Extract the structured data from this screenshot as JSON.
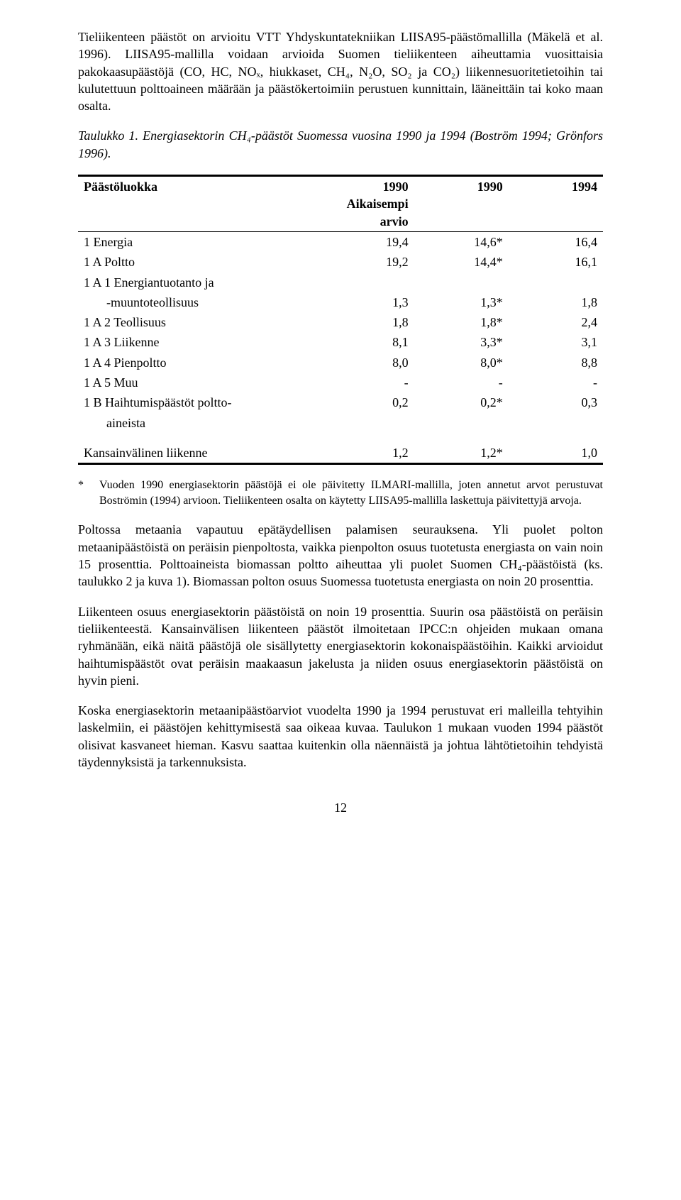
{
  "para1": "Tieliikenteen päästöt on arvioitu VTT Yhdyskuntatekniikan LIISA95-päästömallilla (Mäkelä et al. 1996). LIISA95-mallilla voidaan arvioida Suomen tieliikenteen aiheuttamia vuosittaisia pakokaasupäästöjä (CO, HC, NOₓ, hiukkaset, CH₄, N₂O, SO₂ ja CO₂) liikennesuoritetietoihin tai kulutettuun polttoaineen määrään ja päästökertoimiin perustuen kunnittain, lääneittäin tai koko maan osalta.",
  "tableCaption": "Taulukko 1. Energiasektorin CH₄-päästöt Suomessa vuosina 1990 ja 1994 (Boström 1994; Grönfors 1996).",
  "headers": {
    "c0": "Päästöluokka",
    "c1a": "1990",
    "c1b": "Aikaisempi",
    "c1c": "arvio",
    "c2": "1990",
    "c3": "1994"
  },
  "rows": [
    {
      "label": "1 Energia",
      "indent": false,
      "v1": "19,4",
      "v2": "14,6*",
      "v3": "16,4"
    },
    {
      "label": "1 A   Poltto",
      "indent": false,
      "v1": "19,2",
      "v2": "14,4*",
      "v3": "16,1"
    },
    {
      "label": "1 A 1 Energiantuotanto ja",
      "indent": false,
      "v1": "",
      "v2": "",
      "v3": ""
    },
    {
      "label": "-muuntoteollisuus",
      "indent": true,
      "v1": "1,3",
      "v2": "1,3*",
      "v3": "1,8"
    },
    {
      "label": "1 A 2 Teollisuus",
      "indent": false,
      "v1": "1,8",
      "v2": "1,8*",
      "v3": "2,4"
    },
    {
      "label": "1 A 3 Liikenne",
      "indent": false,
      "v1": "8,1",
      "v2": "3,3*",
      "v3": "3,1"
    },
    {
      "label": "1 A 4 Pienpoltto",
      "indent": false,
      "v1": "8,0",
      "v2": "8,0*",
      "v3": "8,8"
    },
    {
      "label": "1 A 5 Muu",
      "indent": false,
      "v1": "-",
      "v2": "-",
      "v3": "-"
    },
    {
      "label": "1 B   Haihtumispäästöt poltto-",
      "indent": false,
      "v1": "0,2",
      "v2": "0,2*",
      "v3": "0,3"
    },
    {
      "label": "aineista",
      "indent": true,
      "v1": "",
      "v2": "",
      "v3": ""
    }
  ],
  "rowIntl": {
    "label": "Kansainvälinen liikenne",
    "v1": "1,2",
    "v2": "1,2*",
    "v3": "1,0"
  },
  "footnoteMark": "*",
  "footnote": "Vuoden 1990 energiasektorin päästöjä ei ole päivitetty ILMARI-mallilla, joten annetut arvot perustuvat Boströmin (1994) arvioon. Tieliikenteen osalta on käytetty LIISA95-mallilla laskettuja päivitettyjä arvoja.",
  "para2": "Poltossa metaania vapautuu epätäydellisen palamisen seurauksena. Yli puolet polton metaanipäästöistä on peräisin pienpoltosta, vaikka pienpolton osuus tuotetusta energiasta on vain noin 15 prosenttia. Polttoaineista biomassan poltto aiheuttaa yli puolet Suomen CH₄-päästöistä (ks. taulukko 2 ja kuva 1). Biomassan polton osuus Suomessa tuotetusta energiasta on noin 20 prosenttia.",
  "para3": "Liikenteen osuus energiasektorin päästöistä on noin 19 prosenttia. Suurin osa päästöistä on peräisin tieliikenteestä. Kansainvälisen liikenteen päästöt ilmoitetaan IPCC:n ohjeiden mukaan omana ryhmänään, eikä näitä päästöjä ole sisällytetty energiasektorin kokonaispäästöihin. Kaikki arvioidut haihtumispäästöt ovat peräisin maakaasun jakelusta ja niiden osuus energiasektorin päästöistä on hyvin pieni.",
  "para4": "Koska energiasektorin metaanipäästöarviot vuodelta 1990 ja 1994 perustuvat eri malleilla tehtyihin laskelmiin, ei päästöjen kehittymisestä saa oikeaa kuvaa. Taulukon 1 mukaan vuoden 1994 päästöt olisivat kasvaneet hieman. Kasvu saattaa kuitenkin olla näennäistä ja johtua lähtötietoihin tehdyistä täydennyksistä ja tarkennuksista.",
  "pageNumber": "12"
}
